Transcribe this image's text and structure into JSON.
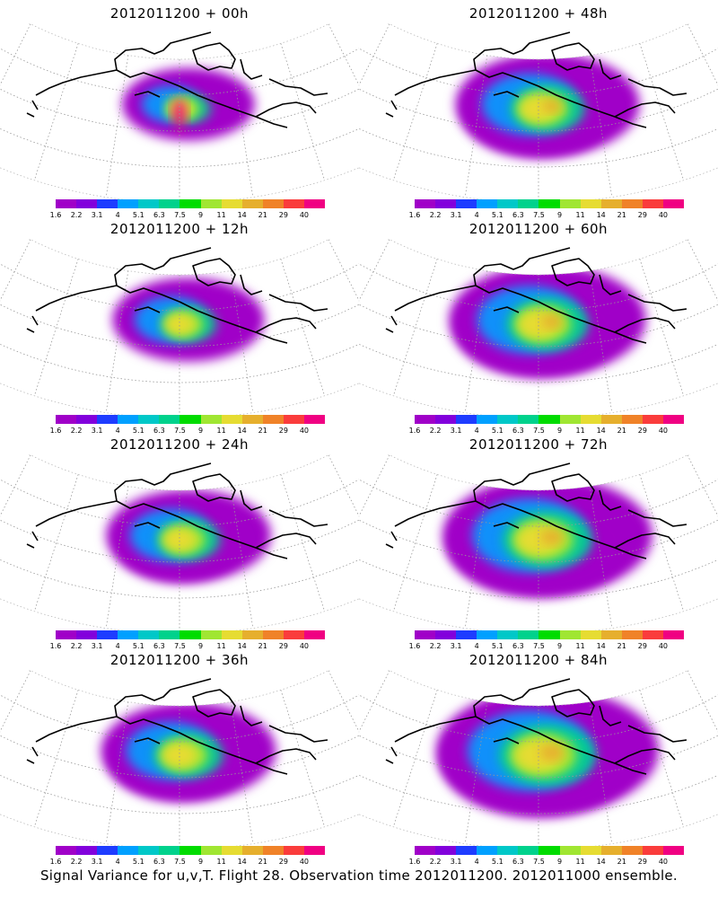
{
  "panels": [
    {
      "title": "2012011200  + 00h",
      "intensity": 0.15
    },
    {
      "title": "2012011200  + 48h",
      "intensity": 0.55
    },
    {
      "title": "2012011200  + 12h",
      "intensity": 0.3
    },
    {
      "title": "2012011200  + 60h",
      "intensity": 0.65
    },
    {
      "title": "2012011200  + 24h",
      "intensity": 0.4
    },
    {
      "title": "2012011200  + 72h",
      "intensity": 0.75
    },
    {
      "title": "2012011200  + 36h",
      "intensity": 0.48
    },
    {
      "title": "2012011200  + 84h",
      "intensity": 0.85
    }
  ],
  "colorbar": {
    "labels": [
      "1.6",
      "2.2",
      "3.1",
      "4",
      "5.1",
      "6.3",
      "7.5",
      "9",
      "11",
      "14",
      "21",
      "29",
      "40"
    ],
    "colors": [
      "#a000c8",
      "#8200dc",
      "#1e3cff",
      "#00a0ff",
      "#00c8c8",
      "#00d28c",
      "#00dc00",
      "#a0e632",
      "#e6dc32",
      "#e6af2d",
      "#f08228",
      "#fa3c3c",
      "#f00082"
    ]
  },
  "caption": "Signal Variance for u,v,T. Flight 28. Observation time 2012011200. 2012011000 ensemble."
}
